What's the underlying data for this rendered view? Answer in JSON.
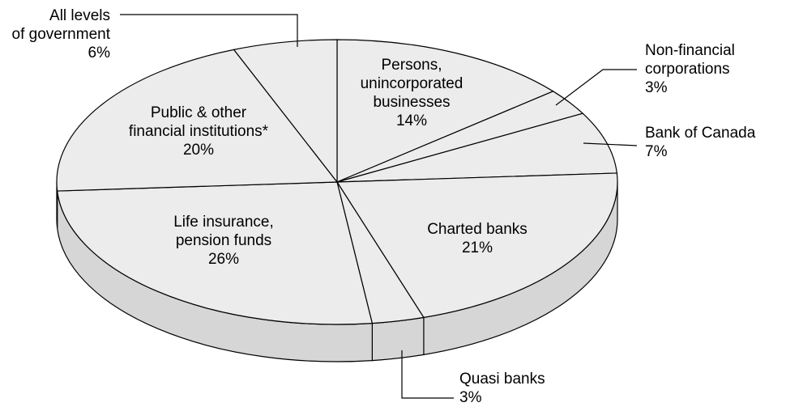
{
  "chart_data": {
    "type": "pie",
    "title": "",
    "style": "3d-tilted",
    "colors": {
      "top": "#ececec",
      "side": "#d6d6d6",
      "stroke": "#000000"
    },
    "slices": [
      {
        "label_lines": [
          "Persons,",
          "unincorporated",
          "businesses"
        ],
        "value": 14,
        "value_text": "14%"
      },
      {
        "label_lines": [
          "Non-financial",
          "corporations"
        ],
        "value": 3,
        "value_text": "3%"
      },
      {
        "label_lines": [
          "Bank of Canada"
        ],
        "value": 7,
        "value_text": "7%"
      },
      {
        "label_lines": [
          "Charted banks"
        ],
        "value": 21,
        "value_text": "21%"
      },
      {
        "label_lines": [
          "Quasi banks"
        ],
        "value": 3,
        "value_text": "3%"
      },
      {
        "label_lines": [
          "Life insurance,",
          "pension funds"
        ],
        "value": 26,
        "value_text": "26%"
      },
      {
        "label_lines": [
          "Public & other",
          "financial institutions*"
        ],
        "value": 20,
        "value_text": "20%"
      },
      {
        "label_lines": [
          "All levels",
          "of government"
        ],
        "value": 6,
        "value_text": "6%"
      }
    ]
  }
}
